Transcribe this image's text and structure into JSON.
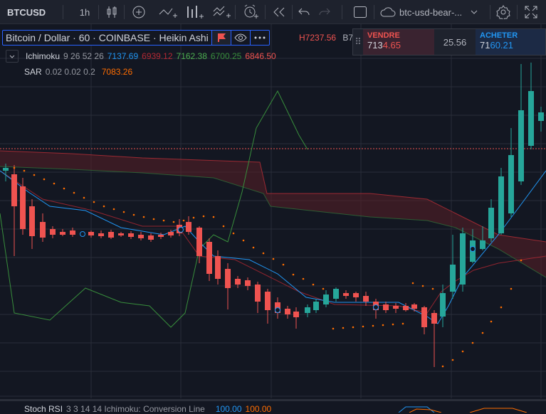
{
  "toolbar": {
    "symbol": "BTCUSD",
    "interval": "1h",
    "layout_name": "btc-usd-bear-...",
    "icons": [
      "bar-style-icon",
      "add-indicator-icon",
      "indicators-icon",
      "compare-icon",
      "templates-icon",
      "alert-icon",
      "replay-icon",
      "undo-icon",
      "redo-icon",
      "select-layout-icon",
      "cloud-save-icon",
      "chevron-down-icon",
      "settings-icon",
      "fullscreen-icon"
    ]
  },
  "legend": {
    "title": "Bitcoin / Dollar · 60 · COINBASE · Heikin Ashi",
    "ohlc_high": "H7237.56",
    "ohlc_extra": "B7"
  },
  "trade": {
    "sell_label": "VENDRE",
    "sell_price_main": "713",
    "sell_price_tail": "4.65",
    "spread": "25.56",
    "buy_label": "ACHETER",
    "buy_price_main": "71",
    "buy_price_tail": "60.21",
    "colors": {
      "sell": "#ef5350",
      "buy": "#2196f3"
    }
  },
  "indicators": {
    "ichimoku": {
      "name": "Ichimoku",
      "params": "9 26 52 26",
      "values": [
        "7137.69",
        "6939.12",
        "7162.38",
        "6700.25",
        "6846.50"
      ],
      "colors": [
        "#2196f3",
        "#b22833",
        "#4caf50",
        "#388e3c",
        "#ef5350"
      ]
    },
    "sar": {
      "name": "SAR",
      "params": "0.02 0.02 0.2",
      "value": "7083.26",
      "color": "#ff6d00"
    },
    "stoch": {
      "name": "Stoch RSI",
      "params": "3 3 14 14 Ichimoku: Conversion Line",
      "values": [
        "100.00",
        "100.00"
      ],
      "colors": [
        "#2196f3",
        "#ff6d00"
      ]
    }
  },
  "colors": {
    "up": "#26a69a",
    "down": "#ef5350",
    "background": "#131722"
  }
}
